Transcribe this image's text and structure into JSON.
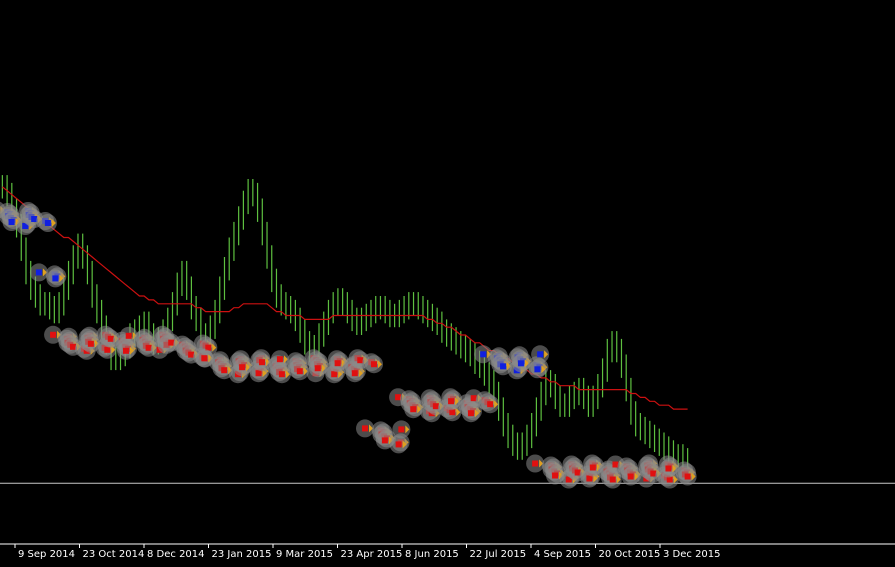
{
  "window": {
    "background": "#000000"
  },
  "chart_data": {
    "type": "line",
    "title": "",
    "xlabel": "",
    "ylabel": "",
    "x_axis": {
      "tick_labels": [
        "9 Sep 2014",
        "23 Oct 2014",
        "8 Dec 2014",
        "23 Jan 2015",
        "9 Mar 2015",
        "23 Apr 2015",
        "8 Jun 2015",
        "22 Jul 2015",
        "4 Sep 2015",
        "20 Oct 2015",
        "3 Dec 2015"
      ]
    },
    "grid": false,
    "colors": {
      "bars": "#5ec040",
      "moving_average": "#cc1111",
      "signal_up": "#1020e0",
      "signal_down": "#e01010",
      "signal_marker": "#e0a020",
      "signal_halo": "#8a8a8a",
      "reference_line": "#c8c8c8",
      "axis_line": "#ffffff"
    },
    "y_range": [
      0,
      100
    ],
    "series": [
      {
        "kind": "bars",
        "values": [
          88,
          86,
          82,
          78,
          72,
          66,
          62,
          60,
          58,
          58,
          57,
          56,
          58,
          62,
          66,
          70,
          73,
          70,
          66,
          60,
          56,
          52,
          48,
          44,
          44,
          45,
          47,
          50,
          51,
          52,
          53,
          50,
          48,
          49,
          51,
          54,
          58,
          63,
          66,
          62,
          57,
          54,
          50,
          50,
          52,
          56,
          62,
          67,
          72,
          76,
          80,
          84,
          87,
          86,
          82,
          76,
          70,
          64,
          60,
          58,
          57,
          56,
          54,
          51,
          48,
          46,
          47,
          50,
          53,
          56,
          58,
          59,
          58,
          56,
          54,
          53,
          54,
          55,
          56,
          57,
          57,
          56,
          55,
          55,
          56,
          57,
          58,
          58,
          57,
          56,
          55,
          54,
          53,
          51,
          50,
          49,
          48,
          47,
          46,
          45,
          43,
          42,
          40,
          38,
          35,
          31,
          27,
          24,
          22,
          21,
          22,
          24,
          27,
          31,
          35,
          38,
          37,
          34,
          32,
          32,
          34,
          35,
          36,
          34,
          32,
          34,
          37,
          41,
          46,
          48,
          46,
          42,
          36,
          30,
          27,
          26,
          25,
          24,
          23,
          22,
          21,
          20,
          19,
          19,
          18,
          18
        ]
      },
      {
        "kind": "line",
        "values": [
          88,
          87,
          86,
          85,
          84,
          83,
          82,
          81,
          80,
          79,
          78,
          77,
          76,
          75,
          75,
          74,
          73,
          72,
          71,
          70,
          69,
          68,
          67,
          66,
          65,
          64,
          63,
          62,
          61,
          60,
          60,
          59,
          59,
          58,
          58,
          58,
          58,
          58,
          58,
          58,
          58,
          57,
          57,
          56,
          56,
          56,
          56,
          56,
          56,
          57,
          57,
          58,
          58,
          58,
          58,
          58,
          58,
          57,
          56,
          56,
          55,
          55,
          55,
          55,
          54,
          54,
          54,
          54,
          54,
          54,
          55,
          55,
          55,
          55,
          55,
          55,
          55,
          55,
          55,
          55,
          55,
          55,
          55,
          55,
          55,
          55,
          55,
          55,
          55,
          55,
          54,
          54,
          53,
          53,
          52,
          52,
          51,
          50,
          50,
          49,
          48,
          48,
          47,
          46,
          46,
          45,
          44,
          44,
          43,
          42,
          42,
          41,
          40,
          40,
          39,
          39,
          38,
          38,
          37,
          37,
          37,
          37,
          36,
          36,
          36,
          36,
          36,
          36,
          36,
          36,
          36,
          36,
          36,
          35,
          35,
          34,
          34,
          33,
          33,
          32,
          32,
          32,
          31,
          31,
          31,
          31
        ]
      }
    ],
    "signals": [
      {
        "direction": "up",
        "count": 16,
        "level": 80
      },
      {
        "direction": "up",
        "count": 4,
        "level": 64
      },
      {
        "direction": "down",
        "count": 40,
        "level": 48
      },
      {
        "direction": "down",
        "count": 12,
        "level": 46
      },
      {
        "direction": "down",
        "count": 55,
        "level": 42
      },
      {
        "direction": "down",
        "count": 10,
        "level": 24
      },
      {
        "direction": "down",
        "count": 30,
        "level": 32
      },
      {
        "direction": "up",
        "count": 18,
        "level": 43
      },
      {
        "direction": "down",
        "count": 50,
        "level": 15
      }
    ],
    "reference_level": 12
  }
}
